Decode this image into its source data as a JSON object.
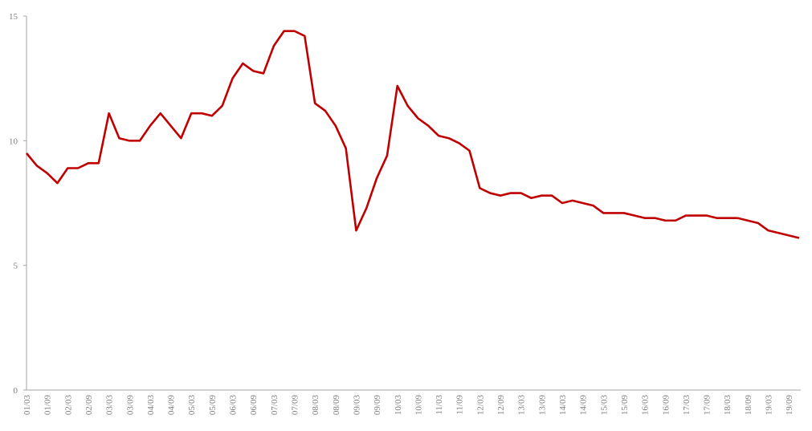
{
  "chart_data": {
    "type": "line",
    "color": "#c00000",
    "categories": [
      "01/03",
      null,
      "01/09",
      null,
      "02/03",
      null,
      "02/09",
      null,
      "03/03",
      null,
      "03/09",
      null,
      "04/03",
      null,
      "04/09",
      null,
      "05/03",
      null,
      "05/09",
      null,
      "06/03",
      null,
      "06/09",
      null,
      "07/03",
      null,
      "07/09",
      null,
      "08/03",
      null,
      "08/09",
      null,
      "09/03",
      null,
      "09/09",
      null,
      "10/03",
      null,
      "10/09",
      null,
      "11/03",
      null,
      "11/09",
      null,
      "12/03",
      null,
      "12/09",
      null,
      "13/03",
      null,
      "13/09",
      null,
      "14/03",
      null,
      "14/09",
      null,
      "15/03",
      null,
      "15/09",
      null,
      "16/03",
      null,
      "16/09",
      null,
      "17/03",
      null,
      "17/09",
      null,
      "18/03",
      null,
      "18/09",
      null,
      "19/03",
      null,
      "19/09",
      null
    ],
    "values": [
      9.5,
      9.0,
      8.7,
      8.3,
      8.9,
      8.9,
      9.1,
      9.1,
      11.1,
      10.1,
      10.0,
      10.0,
      10.6,
      11.1,
      10.6,
      10.1,
      11.1,
      11.1,
      11.0,
      11.4,
      12.5,
      13.1,
      12.8,
      12.7,
      13.8,
      14.4,
      14.4,
      14.2,
      11.5,
      11.2,
      10.6,
      9.7,
      6.4,
      7.3,
      8.5,
      9.4,
      12.2,
      11.4,
      10.9,
      10.6,
      10.2,
      10.1,
      9.9,
      9.6,
      8.1,
      7.9,
      7.8,
      7.9,
      7.9,
      7.7,
      7.8,
      7.8,
      7.5,
      7.6,
      7.5,
      7.4,
      7.1,
      7.1,
      7.1,
      7.0,
      6.9,
      6.9,
      6.8,
      6.8,
      7.0,
      7.0,
      7.0,
      6.9,
      6.9,
      6.9,
      6.8,
      6.7,
      6.4,
      6.3,
      6.2,
      6.1
    ],
    "ylim": [
      0,
      15
    ],
    "yticks": [
      0,
      5,
      10,
      15
    ],
    "grid": false
  }
}
